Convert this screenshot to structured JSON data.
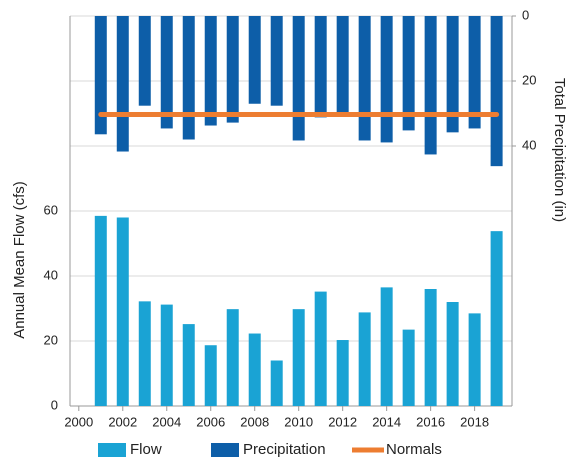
{
  "chart_data": {
    "type": "bar-line",
    "x": [
      2001,
      2002,
      2003,
      2004,
      2005,
      2006,
      2007,
      2008,
      2009,
      2010,
      2011,
      2012,
      2013,
      2014,
      2015,
      2016,
      2017,
      2018,
      2019
    ],
    "series": [
      {
        "name": "Flow",
        "color": "#1aa3d4",
        "type": "bar",
        "axis": "y",
        "values": [
          58.5,
          58,
          32.2,
          31.2,
          25.2,
          18.7,
          29.8,
          22.3,
          14,
          29.8,
          35.2,
          20.3,
          28.8,
          36.5,
          23.5,
          36,
          32,
          28.5,
          53.8
        ]
      },
      {
        "name": "Precipitation",
        "color": "#0d5ea8",
        "type": "bar",
        "axis": "y2",
        "values": [
          36.4,
          41.7,
          27.6,
          34.6,
          38,
          33.7,
          32.8,
          27,
          27.6,
          38.3,
          31.2,
          30.6,
          38.3,
          38.9,
          35.2,
          42.6,
          35.8,
          34.6,
          46.2
        ]
      },
      {
        "name": "Normals",
        "color": "#ed7d31",
        "type": "line",
        "axis": "y2",
        "values": [
          30.3,
          30.3,
          30.3,
          30.3,
          30.3,
          30.3,
          30.3,
          30.3,
          30.3,
          30.3,
          30.3,
          30.3,
          30.3,
          30.3,
          30.3,
          30.3,
          30.3,
          30.3,
          30.3
        ]
      }
    ],
    "y_label": "Annual Mean Flow (cfs)",
    "y2_label": "Total Precipitation (in)",
    "xlim": [
      1999.6,
      2019.7
    ],
    "xticks": [
      2000,
      2002,
      2004,
      2006,
      2008,
      2010,
      2012,
      2014,
      2016,
      2018
    ],
    "ylim": [
      0,
      120
    ],
    "yticks": [
      0,
      20,
      40,
      60
    ],
    "y2lim": [
      0,
      120
    ],
    "y2ticks": [
      0,
      20,
      40
    ],
    "y2_reversed": true,
    "grid": true,
    "legend": "bottom"
  }
}
